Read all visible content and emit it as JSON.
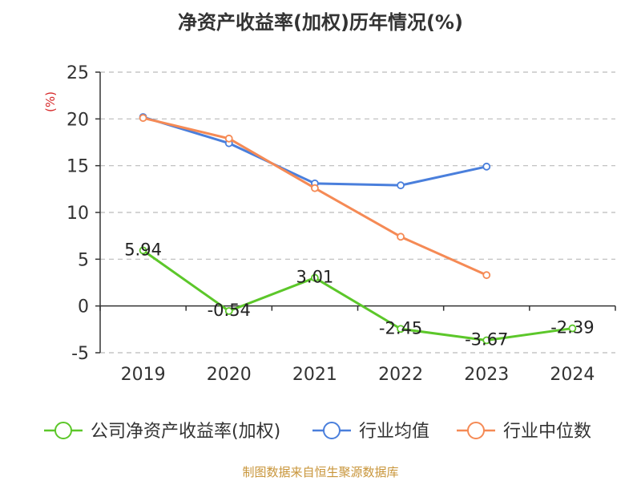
{
  "chart_data": {
    "type": "line",
    "title": "净资产收益率(加权)历年情况(%)",
    "ylabel": "(%)",
    "xlabel": "",
    "categories": [
      "2019",
      "2020",
      "2021",
      "2022",
      "2023",
      "2024"
    ],
    "ylim": [
      -5,
      25
    ],
    "yticks": [
      -5,
      0,
      5,
      10,
      15,
      20,
      25
    ],
    "grid": true,
    "legend_position": "bottom",
    "series": [
      {
        "name": "公司净资产收益率(加权)",
        "color": "#5cc72a",
        "values": [
          5.94,
          -0.54,
          3.01,
          -2.45,
          -3.67,
          -2.39
        ],
        "labels": [
          "5.94",
          "-0.54",
          "3.01",
          "-2.45",
          "-3.67",
          "-2.39"
        ]
      },
      {
        "name": "行业均值",
        "color": "#4a7fdc",
        "values": [
          20.2,
          17.4,
          13.1,
          12.9,
          14.9,
          null
        ]
      },
      {
        "name": "行业中位数",
        "color": "#f58a55",
        "values": [
          20.1,
          17.9,
          12.6,
          7.4,
          3.3,
          null
        ]
      }
    ],
    "source": "制图数据来自恒生聚源数据库"
  },
  "colors": {
    "ylabel": "#d62728",
    "source": "#c8953a",
    "axis": "#333333",
    "grid": "#bbbbbb"
  }
}
